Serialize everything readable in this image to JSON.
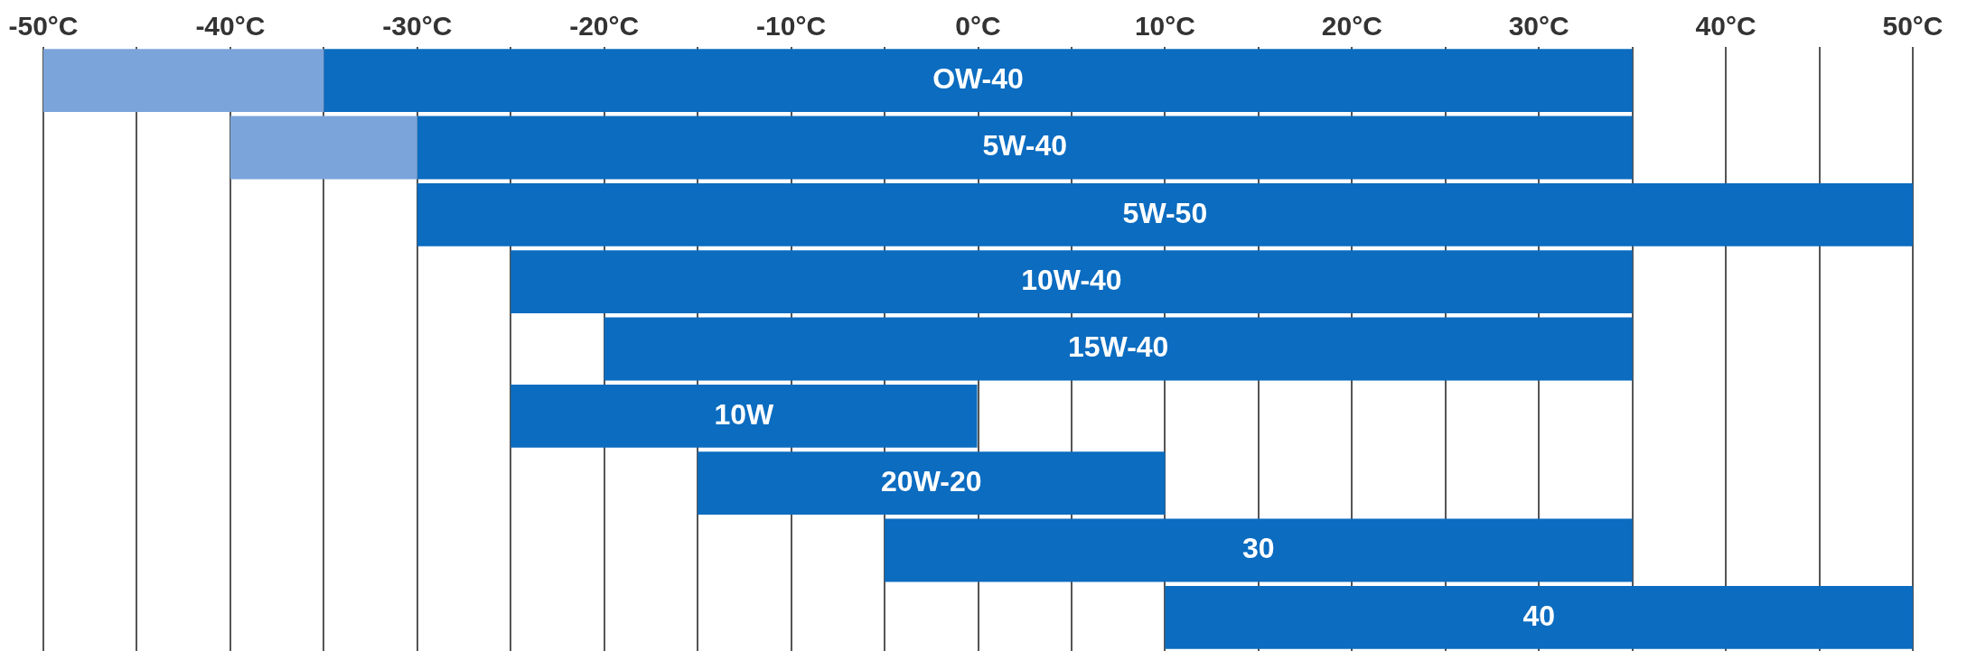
{
  "chart_data": {
    "type": "bar",
    "orientation": "horizontal",
    "categories": [
      "OW-40",
      "5W-40",
      "5W-50",
      "10W-40",
      "15W-40",
      "10W",
      "20W-20",
      "30",
      "40"
    ],
    "series": [
      {
        "color": "#7ba4da",
        "base": [
          -50,
          -40,
          null,
          null,
          null,
          null,
          null,
          null,
          null
        ],
        "values": [
          15,
          10,
          null,
          null,
          null,
          null,
          null,
          null,
          null
        ]
      },
      {
        "color": "#0b6cc0",
        "base": [
          -35,
          -30,
          -30,
          -25,
          -20,
          -25,
          -15,
          -5,
          10
        ],
        "values": [
          70,
          65,
          80,
          60,
          55,
          25,
          25,
          40,
          40
        ]
      }
    ],
    "xlim": [
      -50,
      50
    ],
    "xticks": [
      {
        "value": -50,
        "label": "-50°C"
      },
      {
        "value": -45,
        "label": null
      },
      {
        "value": -40,
        "label": "-40°C"
      },
      {
        "value": -35,
        "label": null
      },
      {
        "value": -30,
        "label": "-30°C"
      },
      {
        "value": -25,
        "label": null
      },
      {
        "value": -20,
        "label": "-20°C"
      },
      {
        "value": -15,
        "label": null
      },
      {
        "value": -10,
        "label": "-10°C"
      },
      {
        "value": -5,
        "label": null
      },
      {
        "value": 0,
        "label": "0°C"
      },
      {
        "value": 5,
        "label": null
      },
      {
        "value": 10,
        "label": "10°C"
      },
      {
        "value": 15,
        "label": null
      },
      {
        "value": 20,
        "label": "20°C"
      },
      {
        "value": 25,
        "label": null
      },
      {
        "value": 30,
        "label": "30°C"
      },
      {
        "value": 35,
        "label": null
      },
      {
        "value": 40,
        "label": "40°C"
      },
      {
        "value": 45,
        "label": null
      },
      {
        "value": 50,
        "label": "50°C"
      }
    ],
    "grid": "x",
    "tick_labels": "x",
    "legend": false
  }
}
